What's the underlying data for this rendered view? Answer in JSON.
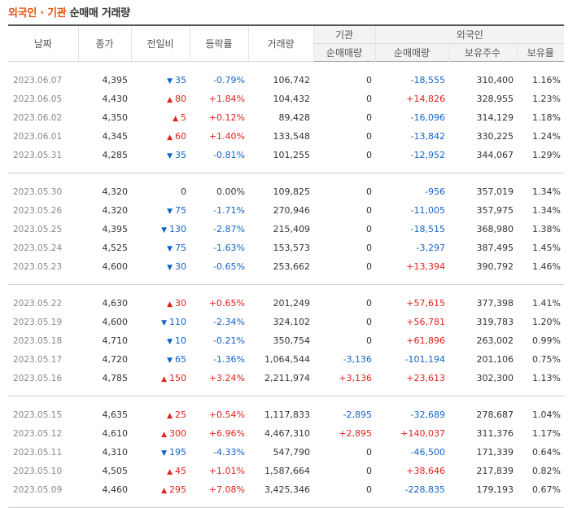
{
  "title": {
    "highlight": "외국인 · 기관",
    "rest": " 순매매 거래량"
  },
  "headers": {
    "date": "날짜",
    "close": "종가",
    "change": "전일비",
    "rate": "등락률",
    "volume": "거래량",
    "institution": "기관",
    "foreign": "외국인",
    "inst_net": "순매매량",
    "foreign_net": "순매매량",
    "holdings": "보유주수",
    "ratio": "보유율"
  },
  "colors": {
    "up": "#e0221d",
    "down": "#1463c9",
    "accent": "#e8520f"
  },
  "groups": [
    [
      {
        "date": "2023.06.07",
        "close": "4,395",
        "dir": "down",
        "change": "35",
        "rate": "-0.79%",
        "volume": "106,742",
        "inst": "0",
        "foreign": "-18,555",
        "holdings": "310,400",
        "ratio": "1.16%"
      },
      {
        "date": "2023.06.05",
        "close": "4,430",
        "dir": "up",
        "change": "80",
        "rate": "+1.84%",
        "volume": "104,432",
        "inst": "0",
        "foreign": "+14,826",
        "holdings": "328,955",
        "ratio": "1.23%"
      },
      {
        "date": "2023.06.02",
        "close": "4,350",
        "dir": "up",
        "change": "5",
        "rate": "+0.12%",
        "volume": "89,428",
        "inst": "0",
        "foreign": "-16,096",
        "holdings": "314,129",
        "ratio": "1.18%"
      },
      {
        "date": "2023.06.01",
        "close": "4,345",
        "dir": "up",
        "change": "60",
        "rate": "+1.40%",
        "volume": "133,548",
        "inst": "0",
        "foreign": "-13,842",
        "holdings": "330,225",
        "ratio": "1.24%"
      },
      {
        "date": "2023.05.31",
        "close": "4,285",
        "dir": "down",
        "change": "35",
        "rate": "-0.81%",
        "volume": "101,255",
        "inst": "0",
        "foreign": "-12,952",
        "holdings": "344,067",
        "ratio": "1.29%"
      }
    ],
    [
      {
        "date": "2023.05.30",
        "close": "4,320",
        "dir": "none",
        "change": "0",
        "rate": "0.00%",
        "volume": "109,825",
        "inst": "0",
        "foreign": "-956",
        "holdings": "357,019",
        "ratio": "1.34%"
      },
      {
        "date": "2023.05.26",
        "close": "4,320",
        "dir": "down",
        "change": "75",
        "rate": "-1.71%",
        "volume": "270,946",
        "inst": "0",
        "foreign": "-11,005",
        "holdings": "357,975",
        "ratio": "1.34%"
      },
      {
        "date": "2023.05.25",
        "close": "4,395",
        "dir": "down",
        "change": "130",
        "rate": "-2.87%",
        "volume": "215,409",
        "inst": "0",
        "foreign": "-18,515",
        "holdings": "368,980",
        "ratio": "1.38%"
      },
      {
        "date": "2023.05.24",
        "close": "4,525",
        "dir": "down",
        "change": "75",
        "rate": "-1.63%",
        "volume": "153,573",
        "inst": "0",
        "foreign": "-3,297",
        "holdings": "387,495",
        "ratio": "1.45%"
      },
      {
        "date": "2023.05.23",
        "close": "4,600",
        "dir": "down",
        "change": "30",
        "rate": "-0.65%",
        "volume": "253,662",
        "inst": "0",
        "foreign": "+13,394",
        "holdings": "390,792",
        "ratio": "1.46%"
      }
    ],
    [
      {
        "date": "2023.05.22",
        "close": "4,630",
        "dir": "up",
        "change": "30",
        "rate": "+0.65%",
        "volume": "201,249",
        "inst": "0",
        "foreign": "+57,615",
        "holdings": "377,398",
        "ratio": "1.41%"
      },
      {
        "date": "2023.05.19",
        "close": "4,600",
        "dir": "down",
        "change": "110",
        "rate": "-2.34%",
        "volume": "324,102",
        "inst": "0",
        "foreign": "+56,781",
        "holdings": "319,783",
        "ratio": "1.20%"
      },
      {
        "date": "2023.05.18",
        "close": "4,710",
        "dir": "down",
        "change": "10",
        "rate": "-0.21%",
        "volume": "350,754",
        "inst": "0",
        "foreign": "+61,896",
        "holdings": "263,002",
        "ratio": "0.99%"
      },
      {
        "date": "2023.05.17",
        "close": "4,720",
        "dir": "down",
        "change": "65",
        "rate": "-1.36%",
        "volume": "1,064,544",
        "inst": "-3,136",
        "foreign": "-101,194",
        "holdings": "201,106",
        "ratio": "0.75%"
      },
      {
        "date": "2023.05.16",
        "close": "4,785",
        "dir": "up",
        "change": "150",
        "rate": "+3.24%",
        "volume": "2,211,974",
        "inst": "+3,136",
        "foreign": "+23,613",
        "holdings": "302,300",
        "ratio": "1.13%"
      }
    ],
    [
      {
        "date": "2023.05.15",
        "close": "4,635",
        "dir": "up",
        "change": "25",
        "rate": "+0.54%",
        "volume": "1,117,833",
        "inst": "-2,895",
        "foreign": "-32,689",
        "holdings": "278,687",
        "ratio": "1.04%"
      },
      {
        "date": "2023.05.12",
        "close": "4,610",
        "dir": "up",
        "change": "300",
        "rate": "+6.96%",
        "volume": "4,467,310",
        "inst": "+2,895",
        "foreign": "+140,037",
        "holdings": "311,376",
        "ratio": "1.17%"
      },
      {
        "date": "2023.05.11",
        "close": "4,310",
        "dir": "down",
        "change": "195",
        "rate": "-4.33%",
        "volume": "547,790",
        "inst": "0",
        "foreign": "-46,500",
        "holdings": "171,339",
        "ratio": "0.64%"
      },
      {
        "date": "2023.05.10",
        "close": "4,505",
        "dir": "up",
        "change": "45",
        "rate": "+1.01%",
        "volume": "1,587,664",
        "inst": "0",
        "foreign": "+38,646",
        "holdings": "217,839",
        "ratio": "0.82%"
      },
      {
        "date": "2023.05.09",
        "close": "4,460",
        "dir": "up",
        "change": "295",
        "rate": "+7.08%",
        "volume": "3,425,346",
        "inst": "0",
        "foreign": "-228,835",
        "holdings": "179,193",
        "ratio": "0.67%"
      }
    ]
  ]
}
